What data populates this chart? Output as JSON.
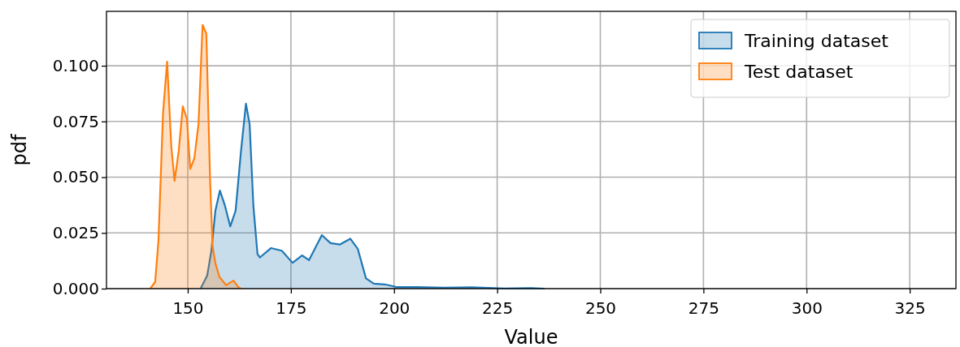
{
  "chart_data": {
    "type": "area",
    "xlabel": "Value",
    "ylabel": "pdf",
    "xlim": [
      130.3,
      336.2
    ],
    "ylim": [
      0,
      0.1244
    ],
    "xticks": [
      150,
      175,
      200,
      225,
      250,
      275,
      300,
      325
    ],
    "yticks": [
      {
        "value": 0,
        "label": "0.000"
      },
      {
        "value": 0.025,
        "label": "0.025"
      },
      {
        "value": 0.05,
        "label": "0.050"
      },
      {
        "value": 0.075,
        "label": "0.075"
      },
      {
        "value": 0.1,
        "label": "0.100"
      }
    ],
    "grid": true,
    "legend": "top right",
    "series": [
      {
        "name": "Training dataset",
        "color": "#1f77b4",
        "x": [
          153.1,
          154.7,
          155.7,
          156.7,
          157.8,
          159.0,
          160.3,
          161.6,
          162.9,
          164.1,
          165.0,
          165.9,
          166.9,
          167.5,
          170.2,
          172.8,
          175.4,
          177.7,
          179.4,
          182.5,
          184.6,
          186.9,
          189.4,
          191.2,
          193.2,
          195.1,
          197.8,
          200.4,
          205.6,
          212.2,
          218.8,
          226.7,
          233.2,
          236.5
        ],
        "values": [
          0,
          0.0058,
          0.0167,
          0.035,
          0.044,
          0.0373,
          0.0279,
          0.035,
          0.0616,
          0.083,
          0.0737,
          0.0373,
          0.0155,
          0.014,
          0.0182,
          0.017,
          0.0116,
          0.0149,
          0.0128,
          0.024,
          0.0204,
          0.0198,
          0.0224,
          0.0179,
          0.0046,
          0.0022,
          0.0019,
          0.0008,
          0.0007,
          0.0004,
          0.0006,
          0.0001,
          0.0002,
          0
        ]
      },
      {
        "name": "Test dataset",
        "color": "#ff7f0e",
        "x": [
          140.9,
          142.1,
          142.9,
          144.0,
          145.0,
          146.0,
          146.8,
          147.8,
          148.8,
          149.8,
          150.6,
          151.6,
          152.6,
          153.6,
          154.5,
          155.4,
          156.0,
          156.7,
          157.7,
          159.3,
          161.1,
          162.3,
          162.9
        ],
        "values": [
          0,
          0.003,
          0.0216,
          0.0785,
          0.1018,
          0.064,
          0.0483,
          0.0616,
          0.0818,
          0.0761,
          0.0537,
          0.0585,
          0.0737,
          0.1183,
          0.1143,
          0.0495,
          0.0192,
          0.0113,
          0.0052,
          0.0016,
          0.0036,
          0.0006,
          0
        ]
      }
    ]
  }
}
